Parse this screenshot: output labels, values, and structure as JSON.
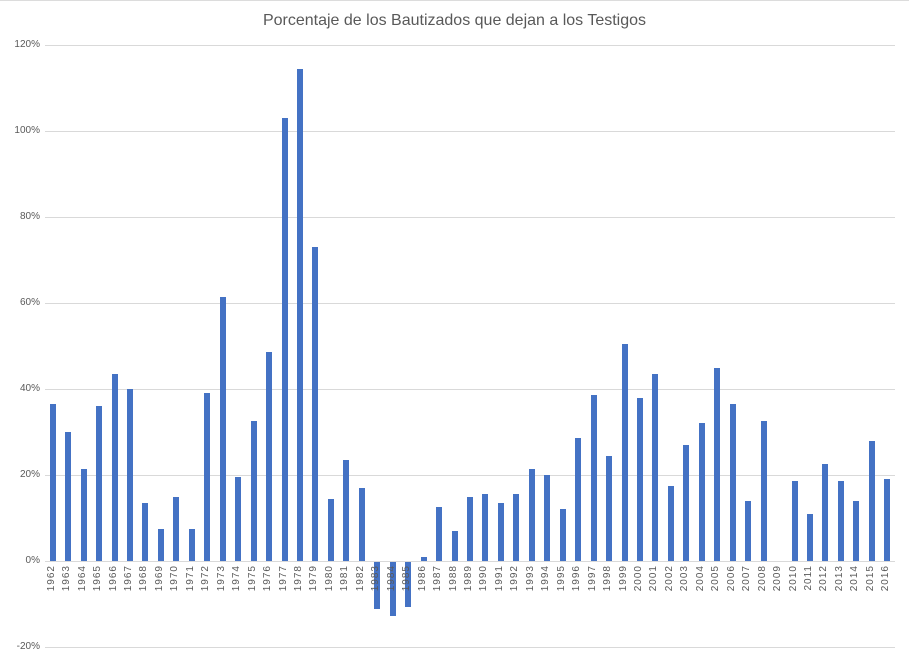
{
  "title": "Porcentaje de los Bautizados que dejan a los Testigos",
  "colors": {
    "bar": "#4472C4",
    "gridline": "#D9D9D9",
    "text": "#595959",
    "background": "#FFFFFF"
  },
  "chart_data": {
    "type": "bar",
    "title": "Porcentaje de los Bautizados que dejan a los Testigos",
    "xlabel": "",
    "ylabel": "",
    "ylim": [
      -20,
      120
    ],
    "grid": true,
    "legend": false,
    "bar_color": "#4472C4",
    "ytick_format": "percent",
    "yticks": [
      120,
      100,
      80,
      60,
      40,
      20,
      0,
      -20
    ],
    "ytick_labels": [
      "120%",
      "100%",
      "80%",
      "60%",
      "40%",
      "20%",
      "0%",
      "-20%"
    ],
    "categories": [
      "1962",
      "1963",
      "1964",
      "1965",
      "1966",
      "1967",
      "1968",
      "1969",
      "1970",
      "1971",
      "1972",
      "1973",
      "1974",
      "1975",
      "1976",
      "1977",
      "1978",
      "1979",
      "1980",
      "1981",
      "1982",
      "1983",
      "1984",
      "1985",
      "1986",
      "1987",
      "1988",
      "1989",
      "1990",
      "1991",
      "1992",
      "1993",
      "1994",
      "1995",
      "1996",
      "1997",
      "1998",
      "1999",
      "2000",
      "2001",
      "2002",
      "2003",
      "2004",
      "2005",
      "2006",
      "2007",
      "2008",
      "2009",
      "2010",
      "2011",
      "2012",
      "2013",
      "2014",
      "2015",
      "2016"
    ],
    "values": [
      36.5,
      30,
      21.5,
      36,
      43.5,
      40,
      13.5,
      7.5,
      15,
      7.5,
      39,
      61.5,
      19.5,
      32.5,
      48.5,
      103,
      114.5,
      73,
      14.5,
      23.5,
      17,
      -11,
      -12.5,
      -10.5,
      1,
      12.5,
      7,
      15,
      15.5,
      13.5,
      15.5,
      21.5,
      20,
      12,
      28.5,
      38.5,
      24.5,
      50.5,
      38,
      43.5,
      17.5,
      27,
      32,
      45,
      36.5,
      14,
      32.5,
      0,
      18.5,
      11,
      22.5,
      18.5,
      14,
      28,
      19
    ]
  }
}
